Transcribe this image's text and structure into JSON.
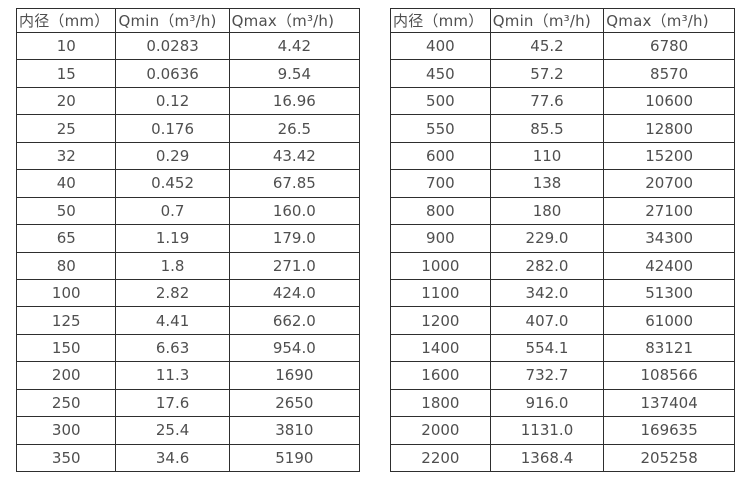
{
  "page": {
    "background": "#ffffff",
    "border_color": "#2e2e2e",
    "text_color": "#4f4f4f"
  },
  "tables": [
    {
      "headers": [
        "内径（mm）",
        "Qmin（m³/h)",
        "Qmax（m³/h)"
      ],
      "rows": [
        [
          "10",
          "0.0283",
          "4.42"
        ],
        [
          "15",
          "0.0636",
          "9.54"
        ],
        [
          "20",
          "0.12",
          "16.96"
        ],
        [
          "25",
          "0.176",
          "26.5"
        ],
        [
          "32",
          "0.29",
          "43.42"
        ],
        [
          "40",
          "0.452",
          "67.85"
        ],
        [
          "50",
          "0.7",
          "160.0"
        ],
        [
          "65",
          "1.19",
          "179.0"
        ],
        [
          "80",
          "1.8",
          "271.0"
        ],
        [
          "100",
          "2.82",
          "424.0"
        ],
        [
          "125",
          "4.41",
          "662.0"
        ],
        [
          "150",
          "6.63",
          "954.0"
        ],
        [
          "200",
          "11.3",
          "1690"
        ],
        [
          "250",
          "17.6",
          "2650"
        ],
        [
          "300",
          "25.4",
          "3810"
        ],
        [
          "350",
          "34.6",
          "5190"
        ]
      ]
    },
    {
      "headers": [
        "内径（mm）",
        "Qmin（m³/h)",
        "Qmax（m³/h)"
      ],
      "rows": [
        [
          "400",
          "45.2",
          "6780"
        ],
        [
          "450",
          "57.2",
          "8570"
        ],
        [
          "500",
          "77.6",
          "10600"
        ],
        [
          "550",
          "85.5",
          "12800"
        ],
        [
          "600",
          "110",
          "15200"
        ],
        [
          "700",
          "138",
          "20700"
        ],
        [
          "800",
          "180",
          "27100"
        ],
        [
          "900",
          "229.0",
          "34300"
        ],
        [
          "1000",
          "282.0",
          "42400"
        ],
        [
          "1100",
          "342.0",
          "51300"
        ],
        [
          "1200",
          "407.0",
          "61000"
        ],
        [
          "1400",
          "554.1",
          "83121"
        ],
        [
          "1600",
          "732.7",
          "108566"
        ],
        [
          "1800",
          "916.0",
          "137404"
        ],
        [
          "2000",
          "1131.0",
          "169635"
        ],
        [
          "2200",
          "1368.4",
          "205258"
        ]
      ]
    }
  ]
}
